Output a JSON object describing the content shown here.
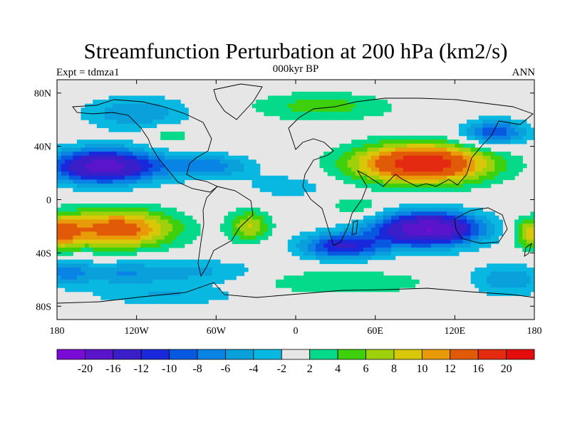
{
  "chart_data": {
    "type": "heatmap",
    "title": "Streamfunction Perturbation at 200 hPa (km2/s)",
    "left_string": "Expt = tdmza1",
    "center_string": "000kyr BP",
    "right_string": "ANN",
    "xlim": [
      -180,
      180
    ],
    "ylim": [
      -90,
      90
    ],
    "x_ticks": [
      {
        "value": -180,
        "label": "180"
      },
      {
        "value": -120,
        "label": "120W"
      },
      {
        "value": -60,
        "label": "60W"
      },
      {
        "value": 0,
        "label": "0"
      },
      {
        "value": 60,
        "label": "60E"
      },
      {
        "value": 120,
        "label": "120E"
      },
      {
        "value": 180,
        "label": "180"
      }
    ],
    "y_ticks": [
      {
        "value": 80,
        "label": "80N"
      },
      {
        "value": 40,
        "label": "40N"
      },
      {
        "value": 0,
        "label": "0"
      },
      {
        "value": -40,
        "label": "40S"
      },
      {
        "value": -80,
        "label": "80S"
      }
    ],
    "colorbar": {
      "levels": [
        -20,
        -16,
        -12,
        -10,
        -8,
        -6,
        -4,
        -2,
        2,
        4,
        6,
        8,
        10,
        12,
        16,
        20
      ],
      "labels": [
        "-20",
        "-16",
        "-12",
        "-10",
        "-8",
        "-6",
        "-4",
        "-2",
        "2",
        "4",
        "6",
        "8",
        "10",
        "12",
        "16",
        "20"
      ],
      "colors": [
        "#7a0ad6",
        "#5a14cc",
        "#3a1ec8",
        "#1a28dc",
        "#0858e0",
        "#0a84e4",
        "#0aa0dc",
        "#08b8e0",
        "#e6e6e6",
        "#05d98a",
        "#3ed00c",
        "#9ed10c",
        "#d9c80a",
        "#e89a08",
        "#e05a08",
        "#e42a10",
        "#e40c0c"
      ]
    },
    "features": [
      {
        "name": "north pacific low",
        "lon": -145,
        "lat": 25,
        "value": -18
      },
      {
        "name": "eurasian high",
        "lon": 95,
        "lat": 27,
        "value": 19
      },
      {
        "name": "south pacific high",
        "lon": -135,
        "lat": -22,
        "value": 14
      },
      {
        "name": "indian ocean low",
        "lon": 100,
        "lat": -22,
        "value": -20
      },
      {
        "name": "south atlantic low",
        "lon": 35,
        "lat": -35,
        "value": -12
      },
      {
        "name": "south atlantic high",
        "lon": -35,
        "lat": -20,
        "value": 8
      },
      {
        "name": "southern ocean high",
        "lon": 30,
        "lat": -62,
        "value": 4
      }
    ]
  }
}
